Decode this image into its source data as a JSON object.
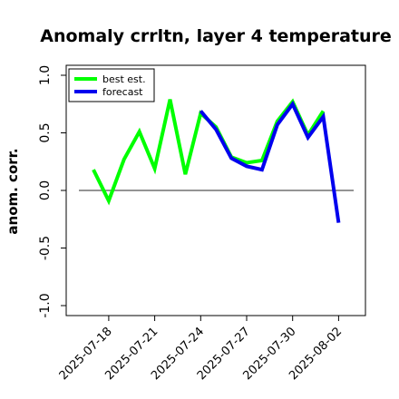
{
  "chart_data": {
    "type": "line",
    "title": "Anomaly crrltn, layer 4 temperature",
    "ylabel": "anom. corr.",
    "xlabel": "",
    "ylim": [
      -1.0,
      1.0
    ],
    "yticks": [
      {
        "value": -1.0,
        "label": "-1.0"
      },
      {
        "value": -0.5,
        "label": "-0.5"
      },
      {
        "value": 0.0,
        "label": "0.0"
      },
      {
        "value": 0.5,
        "label": "0.5"
      },
      {
        "value": 1.0,
        "label": "1.0"
      }
    ],
    "x": [
      "2025-07-17",
      "2025-07-18",
      "2025-07-19",
      "2025-07-20",
      "2025-07-21",
      "2025-07-22",
      "2025-07-23",
      "2025-07-24",
      "2025-07-25",
      "2025-07-26",
      "2025-07-27",
      "2025-07-28",
      "2025-07-29",
      "2025-07-30",
      "2025-07-31",
      "2025-08-01",
      "2025-08-02"
    ],
    "xticks": [
      {
        "value": "2025-07-18",
        "label": "2025-07-18",
        "color": "#000000"
      },
      {
        "value": "2025-07-21",
        "label": "2025-07-21",
        "color": "#000000"
      },
      {
        "value": "2025-07-24",
        "label": "2025-07-24",
        "color": "#008000"
      },
      {
        "value": "2025-07-27",
        "label": "2025-07-27",
        "color": "#000000"
      },
      {
        "value": "2025-07-30",
        "label": "2025-07-30",
        "color": "#000000"
      },
      {
        "value": "2025-08-02",
        "label": "2025-08-02",
        "color": "#000000"
      }
    ],
    "reference_line": {
      "y": 0.0,
      "color": "#555555"
    },
    "series": [
      {
        "name": "best est.",
        "color": "#00ff00",
        "values": [
          0.18,
          -0.09,
          0.27,
          0.51,
          0.19,
          0.79,
          0.14,
          0.67,
          0.55,
          0.29,
          0.24,
          0.26,
          0.6,
          0.77,
          0.48,
          0.69,
          null
        ]
      },
      {
        "name": "forecast",
        "color": "#0000ee",
        "values": [
          null,
          null,
          null,
          null,
          null,
          null,
          null,
          0.69,
          0.53,
          0.28,
          0.21,
          0.18,
          0.57,
          0.75,
          0.46,
          0.64,
          -0.28
        ]
      }
    ],
    "grid": false,
    "legend_position": "top-left"
  }
}
